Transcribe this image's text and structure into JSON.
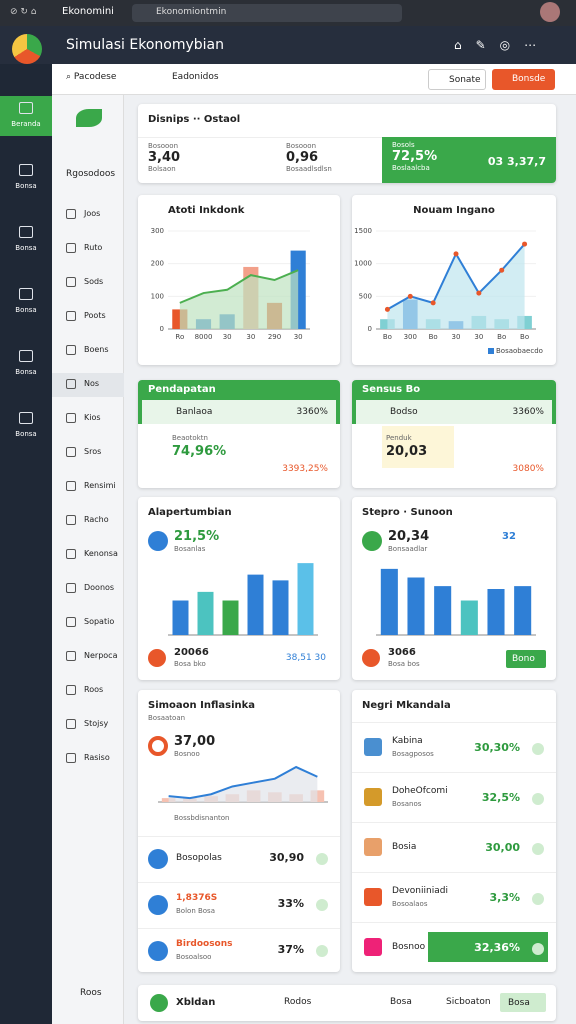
{
  "browser": {
    "tab": "Ekonomini",
    "url": "Ekonomiontmin"
  },
  "header": {
    "title": "Simulasi Ekonomybian"
  },
  "rail": [
    "Beranda",
    "Bonsa",
    "Bonsa",
    "Bonsa",
    "Bonsa",
    "Bonsa"
  ],
  "subnav": {
    "caption": "Rgosodoos",
    "items": [
      "Joos",
      "Ruto",
      "Sods",
      "Poots",
      "Boens",
      "Nos",
      "Kios",
      "Sros",
      "Rensimi",
      "Racho",
      "Kenonsa",
      "Doonos",
      "Sopatio",
      "Nerpoca",
      "Roos",
      "Stojsy",
      "Rasiso"
    ],
    "footer": "Roos"
  },
  "toolbar": {
    "search": "Pacodese",
    "filter": "Eadonidos",
    "primary": "Sonate",
    "accent": "Bonsde"
  },
  "summary": {
    "title": "Disnips ·· Ostaol",
    "stats": [
      {
        "value": "3,40",
        "label": "Bolsaon",
        "caption": "Bosooon"
      },
      {
        "value": "0,96",
        "label": "Bosaadlsdlsn",
        "caption": "Bosooon"
      },
      {
        "value": "72,5%",
        "label": "Boslaalcba",
        "caption": "Bosols"
      }
    ],
    "badge": "03 3,37,7"
  },
  "chart_activity": {
    "type": "bar",
    "title": "Atoti Inkdonk",
    "ylim": [
      0,
      300
    ],
    "yticks": [
      0,
      100,
      200,
      300
    ],
    "categories": [
      "Ro",
      "8000",
      "30",
      "30",
      "290",
      "30"
    ],
    "series": [
      {
        "type": "bar",
        "colors": [
          "#e8572a",
          "#2f7fd6",
          "#2f7fd6",
          "#f2a08a",
          "#e8572a",
          "#2f7fd6"
        ],
        "values": [
          60,
          30,
          45,
          190,
          80,
          240
        ]
      },
      {
        "type": "area",
        "color": "#4caf50",
        "fill": "#bfe3c0",
        "values": [
          80,
          110,
          120,
          165,
          150,
          180
        ]
      }
    ]
  },
  "chart_trend": {
    "type": "line",
    "title": "Nouam Ingano",
    "ylim": [
      0,
      1500
    ],
    "yticks": [
      0,
      500,
      1000,
      1500
    ],
    "categories": [
      "Bo",
      "300",
      "Bo",
      "30",
      "30",
      "Bo",
      "Bo"
    ],
    "series": [
      {
        "type": "bar",
        "colors": [
          "#7fd0d3",
          "#2f7fd6",
          "#7fd0d3",
          "#2f7fd6",
          "#7fd0d3",
          "#7fd0d3",
          "#7fd0d3"
        ],
        "values": [
          150,
          450,
          150,
          120,
          200,
          150,
          200
        ]
      },
      {
        "name": "Bosaobaecdo",
        "type": "area",
        "color": "#2f7fd6",
        "fill": "#bfe6ee",
        "markers": "#e8572a",
        "values": [
          300,
          500,
          400,
          1150,
          550,
          900,
          1300
        ]
      }
    ]
  },
  "kpi_left": {
    "header": "Pendapatan",
    "row": "Banlaoa",
    "row_value": "3360%",
    "label": "Beaotoktn",
    "value": "74,96%",
    "side": "3393,25%"
  },
  "kpi_right": {
    "header": "Sensus Bo",
    "row": "Bodso",
    "row_value": "3360%",
    "label": "Penduk",
    "value": "20,03",
    "side": "3080%"
  },
  "chart_growth": {
    "type": "bar",
    "title": "Alapertumbian",
    "stat": "21,5%",
    "stat_label": "Bosanlas",
    "ylim": [
      0,
      320
    ],
    "series": [
      {
        "type": "bar",
        "colors": [
          "#2f7fd6",
          "#4cc3c0",
          "#3aa84a",
          "#2f7fd6",
          "#2f7fd6",
          "#5bc0e8"
        ],
        "values": [
          120,
          150,
          120,
          210,
          190,
          250
        ]
      }
    ],
    "footer": "20066",
    "footer_label": "Bosa bko",
    "side": "38,51 30"
  },
  "chart_sector": {
    "type": "bar",
    "title": "Stepro · Sunoon",
    "stat": "20,34",
    "stat_label": "Bonsaadlar",
    "side": "32",
    "ylim": [
      0,
      320
    ],
    "series": [
      {
        "type": "bar",
        "colors": [
          "#2f7fd6",
          "#2f7fd6",
          "#2f7fd6",
          "#4cc3c0",
          "#2f7fd6",
          "#2f7fd6"
        ],
        "values": [
          230,
          200,
          170,
          120,
          160,
          170
        ]
      }
    ],
    "footer": "3066",
    "footer_label": "Bosa bos",
    "button": "Bono"
  },
  "chart_forecast": {
    "type": "line",
    "title": "Simoaon Inflasinka",
    "subtitle": "Bosaatoan",
    "stat": "37,00",
    "stat_label": "Bosnoo",
    "ylim": [
      0,
      70
    ],
    "series": [
      {
        "type": "bar",
        "colors": [
          "#f6c1b1",
          "#f6c1b1",
          "#f6c1b1",
          "#f6c1b1",
          "#f6c1b1",
          "#f6c1b1",
          "#f6c1b1",
          "#f6c1b1"
        ],
        "values": [
          4,
          4,
          6,
          8,
          12,
          10,
          8,
          12
        ]
      },
      {
        "type": "area",
        "color": "#2f7fd6",
        "fill": "#e1e4ea",
        "values": [
          6,
          4,
          8,
          16,
          20,
          24,
          36,
          26
        ]
      }
    ],
    "caption": "Bossbdisnanton",
    "list": [
      {
        "label": "Bosopolas",
        "value": "30,90"
      },
      {
        "label": "1,8376S",
        "sub": "Bolon Bosa",
        "value": "33%"
      },
      {
        "label": "Birdoosons",
        "sub": "Bosoalsoo",
        "value": "37%"
      }
    ]
  },
  "market": {
    "title": "Negri Mkandala",
    "items": [
      {
        "label": "Kabina",
        "sub": "Bosagposos",
        "value": "30,30%"
      },
      {
        "label": "DoheOfcomi",
        "sub": "Bosanos",
        "value": "32,5%"
      },
      {
        "label": "Bosia",
        "value": "30,00"
      },
      {
        "label": "Devoniiniadi",
        "sub": "Bosoalaos",
        "value": "3,3%"
      },
      {
        "label": "Bosnoo",
        "value": "32,36%"
      }
    ]
  },
  "bottom": {
    "left": "Xbldan",
    "mid": "Rodos",
    "right": "Bosa",
    "right2": "Sicboaton",
    "button": "Bosa"
  }
}
